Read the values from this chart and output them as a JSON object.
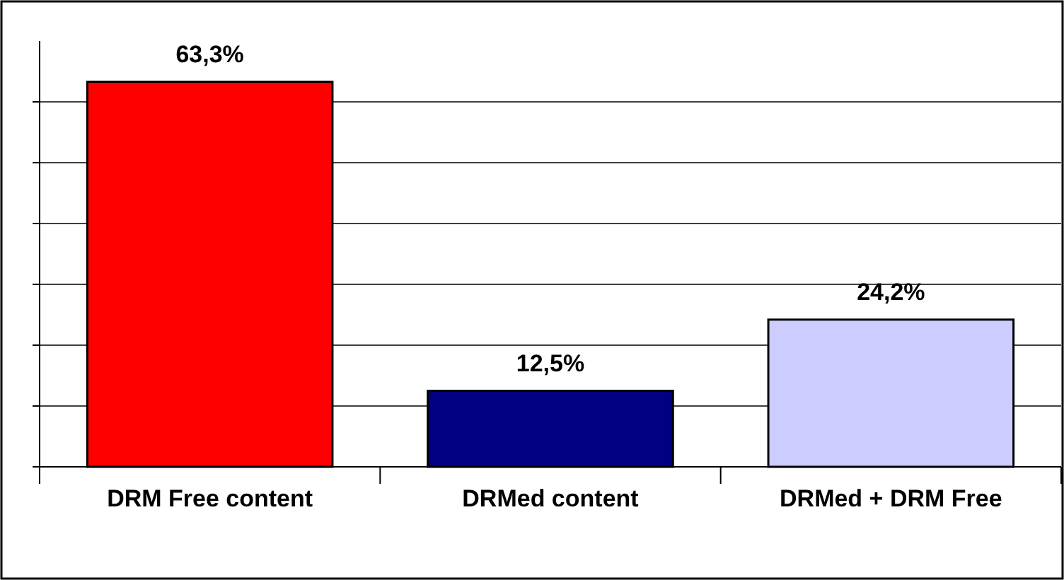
{
  "chart_data": {
    "type": "bar",
    "categories": [
      "DRM Free content",
      "DRMed content",
      "DRMed + DRM Free"
    ],
    "values": [
      63.3,
      12.5,
      24.2
    ],
    "colors": [
      "#ff0000",
      "#000080",
      "#ccccff"
    ],
    "value_labels": [
      "63,3%",
      "12,5%",
      "24,2%"
    ],
    "ylim": [
      0,
      70
    ],
    "yticks": [
      {
        "value": 0,
        "label": null
      },
      {
        "value": 10,
        "label": null
      },
      {
        "value": 20,
        "label": null
      },
      {
        "value": 30,
        "label": null
      },
      {
        "value": 40,
        "label": null
      },
      {
        "value": 50,
        "label": null
      },
      {
        "value": 60,
        "label": null
      }
    ],
    "grid": "y",
    "tick_labels": "x"
  }
}
